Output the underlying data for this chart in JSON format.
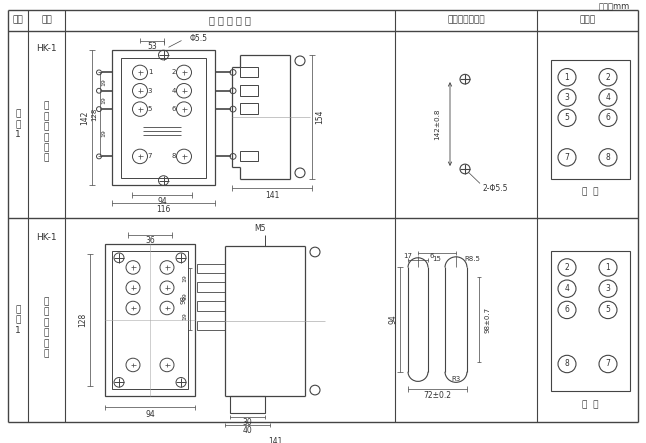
{
  "title_unit": "单位：mm",
  "col_headers": [
    "图号",
    "结构",
    "外 形 尺 寸 图",
    "安装开孔尺寸图",
    "端子图"
  ],
  "row1_fig": "HK-1",
  "row1_struct": "凸\n出\n式\n前\n接\n线",
  "row1_side": "附\n图\n1",
  "row2_fig": "HK-1",
  "row2_struct": "凸\n出\n式\n后\n接\n线",
  "row2_side": "附\n图\n1",
  "front_view": "前  视",
  "back_view": "背  视",
  "bg_color": "#ffffff",
  "lc": "#444444",
  "tc": "#333333"
}
